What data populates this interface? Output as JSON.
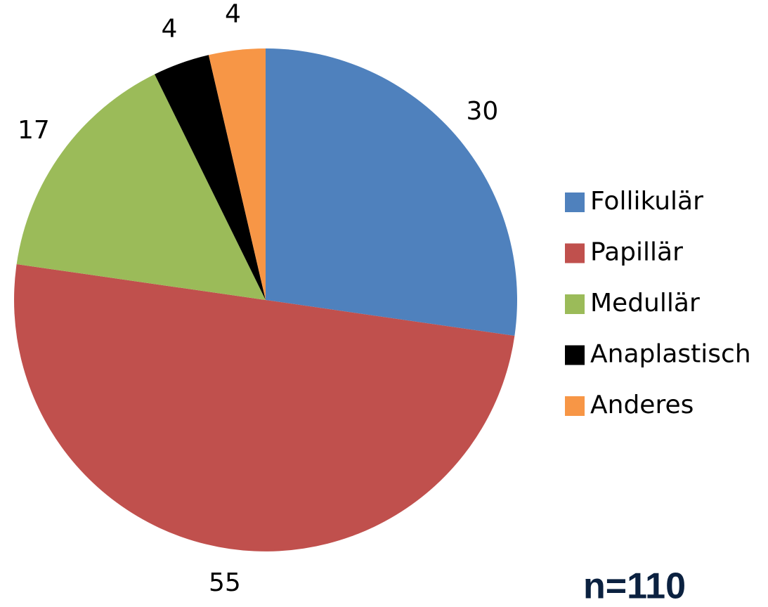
{
  "chart_data": {
    "type": "pie",
    "categories": [
      "Follikulär",
      "Papillär",
      "Medullär",
      "Anaplastisch",
      "Anderes"
    ],
    "values": [
      30,
      55,
      17,
      4,
      4
    ],
    "colors": [
      "#4f81bd",
      "#c0504d",
      "#9bbb59",
      "#000000",
      "#f79646"
    ],
    "legend": "right",
    "annotation": "n=110"
  }
}
